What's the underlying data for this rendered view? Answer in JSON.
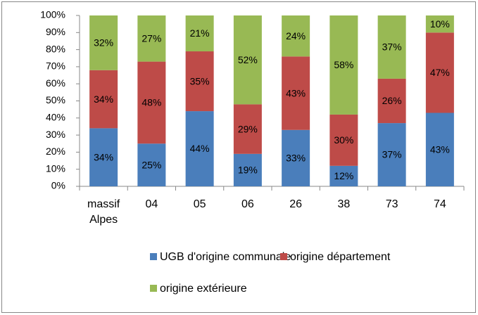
{
  "chart_data": {
    "type": "stacked_bar",
    "categories": [
      "massif Alpes",
      "04",
      "05",
      "06",
      "26",
      "38",
      "73",
      "74"
    ],
    "series": [
      {
        "name": "UGB d'origine communale",
        "color": "#4a7ebb",
        "values": [
          34,
          25,
          44,
          19,
          33,
          12,
          37,
          43
        ],
        "value_labels": [
          "34%",
          "25%",
          "44%",
          "19%",
          "33%",
          "12%",
          "37%",
          "43%"
        ]
      },
      {
        "name": "origine département",
        "color": "#be4b48",
        "values": [
          34,
          48,
          35,
          29,
          43,
          30,
          26,
          47
        ],
        "value_labels": [
          "34%",
          "48%",
          "35%",
          "29%",
          "43%",
          "30%",
          "26%",
          "47%"
        ]
      },
      {
        "name": "origine extérieure",
        "color": "#98b954",
        "values": [
          32,
          27,
          21,
          52,
          24,
          58,
          37,
          10
        ],
        "value_labels": [
          "32%",
          "27%",
          "21%",
          "52%",
          "24%",
          "58%",
          "37%",
          "10%"
        ]
      }
    ],
    "ylim": [
      0,
      100
    ],
    "yticks": [
      {
        "value": 0,
        "label": "0%"
      },
      {
        "value": 10,
        "label": "10%"
      },
      {
        "value": 20,
        "label": "20%"
      },
      {
        "value": 30,
        "label": "30%"
      },
      {
        "value": 40,
        "label": "40%"
      },
      {
        "value": 50,
        "label": "50%"
      },
      {
        "value": 60,
        "label": "60%"
      },
      {
        "value": 70,
        "label": "70%"
      },
      {
        "value": 80,
        "label": "80%"
      },
      {
        "value": 90,
        "label": "90%"
      },
      {
        "value": 100,
        "label": "100%"
      }
    ],
    "grid": false
  }
}
